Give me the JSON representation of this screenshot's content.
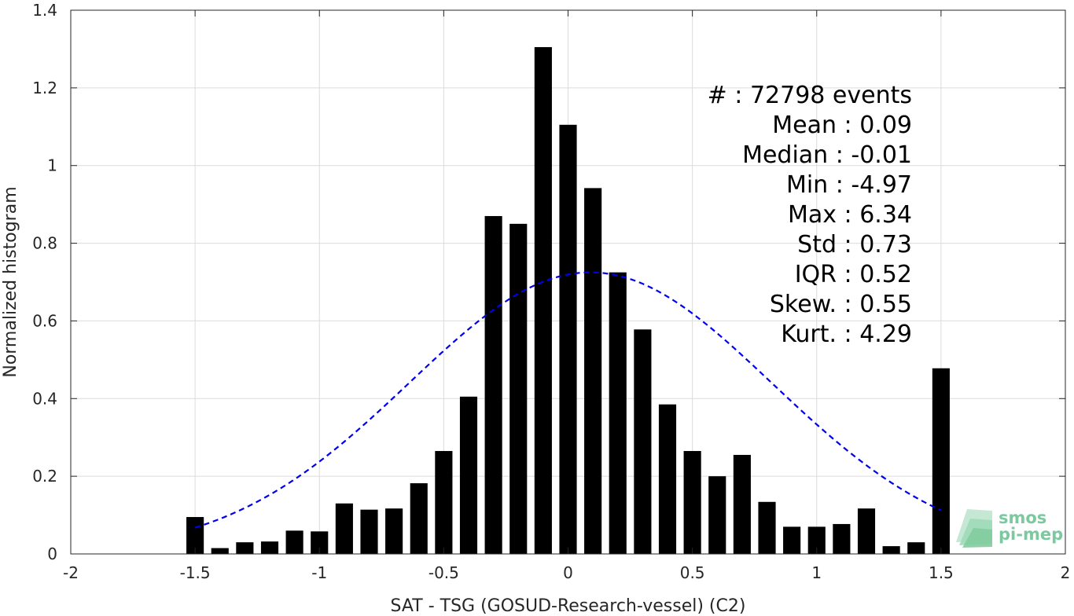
{
  "chart_data": {
    "type": "bar",
    "xlabel": "SAT - TSG (GOSUD-Research-vessel) (C2)",
    "ylabel": "Normalized histogram",
    "xlim": [
      -2,
      2
    ],
    "ylim": [
      0,
      1.4
    ],
    "xticks": [
      -2,
      -1.5,
      -1,
      -0.5,
      0,
      0.5,
      1,
      1.5,
      2
    ],
    "xtick_labels": [
      "-2",
      "-1.5",
      "-1",
      "-0.5",
      "0",
      "0.5",
      "1",
      "1.5",
      "2"
    ],
    "yticks": [
      0,
      0.2,
      0.4,
      0.6,
      0.8,
      1,
      1.2,
      1.4
    ],
    "ytick_labels": [
      "0",
      "0.2",
      "0.4",
      "0.6",
      "0.8",
      "1",
      "1.2",
      "1.4"
    ],
    "grid": true,
    "bar_color": "#000000",
    "bin_width": 0.1,
    "bins": [
      {
        "x": -1.5,
        "y": 0.095
      },
      {
        "x": -1.4,
        "y": 0.015
      },
      {
        "x": -1.3,
        "y": 0.03
      },
      {
        "x": -1.2,
        "y": 0.032
      },
      {
        "x": -1.1,
        "y": 0.06
      },
      {
        "x": -1.0,
        "y": 0.058
      },
      {
        "x": -0.9,
        "y": 0.13
      },
      {
        "x": -0.8,
        "y": 0.114
      },
      {
        "x": -0.7,
        "y": 0.117
      },
      {
        "x": -0.6,
        "y": 0.182
      },
      {
        "x": -0.5,
        "y": 0.265
      },
      {
        "x": -0.4,
        "y": 0.405
      },
      {
        "x": -0.3,
        "y": 0.87
      },
      {
        "x": -0.2,
        "y": 0.85
      },
      {
        "x": -0.1,
        "y": 1.305
      },
      {
        "x": 0.0,
        "y": 1.105
      },
      {
        "x": 0.1,
        "y": 0.942
      },
      {
        "x": 0.2,
        "y": 0.725
      },
      {
        "x": 0.3,
        "y": 0.578
      },
      {
        "x": 0.4,
        "y": 0.385
      },
      {
        "x": 0.5,
        "y": 0.265
      },
      {
        "x": 0.6,
        "y": 0.2
      },
      {
        "x": 0.7,
        "y": 0.255
      },
      {
        "x": 0.8,
        "y": 0.134
      },
      {
        "x": 0.9,
        "y": 0.07
      },
      {
        "x": 1.0,
        "y": 0.07
      },
      {
        "x": 1.1,
        "y": 0.077
      },
      {
        "x": 1.2,
        "y": 0.117
      },
      {
        "x": 1.3,
        "y": 0.02
      },
      {
        "x": 1.4,
        "y": 0.03
      },
      {
        "x": 1.5,
        "y": 0.478
      }
    ],
    "fit_curve": {
      "style": "dashed",
      "color": "#0000ee",
      "mean": 0.09,
      "std": 0.73,
      "peak": 0.725,
      "x_range": [
        -1.5,
        1.5
      ]
    },
    "stats": [
      {
        "label": "#   : 72798 events"
      },
      {
        "label": "Mean : 0.09"
      },
      {
        "label": "Median : -0.01"
      },
      {
        "label": "Min : -4.97"
      },
      {
        "label": "Max : 6.34"
      },
      {
        "label": "Std : 0.73"
      },
      {
        "label": "IQR : 0.52"
      },
      {
        "label": "Skew. : 0.55"
      },
      {
        "label": "Kurt. : 4.29"
      }
    ],
    "stats_placement": "top-right"
  },
  "logo": {
    "line1": "smos",
    "line2": "pi-mep",
    "color": "#7cc9a0"
  }
}
